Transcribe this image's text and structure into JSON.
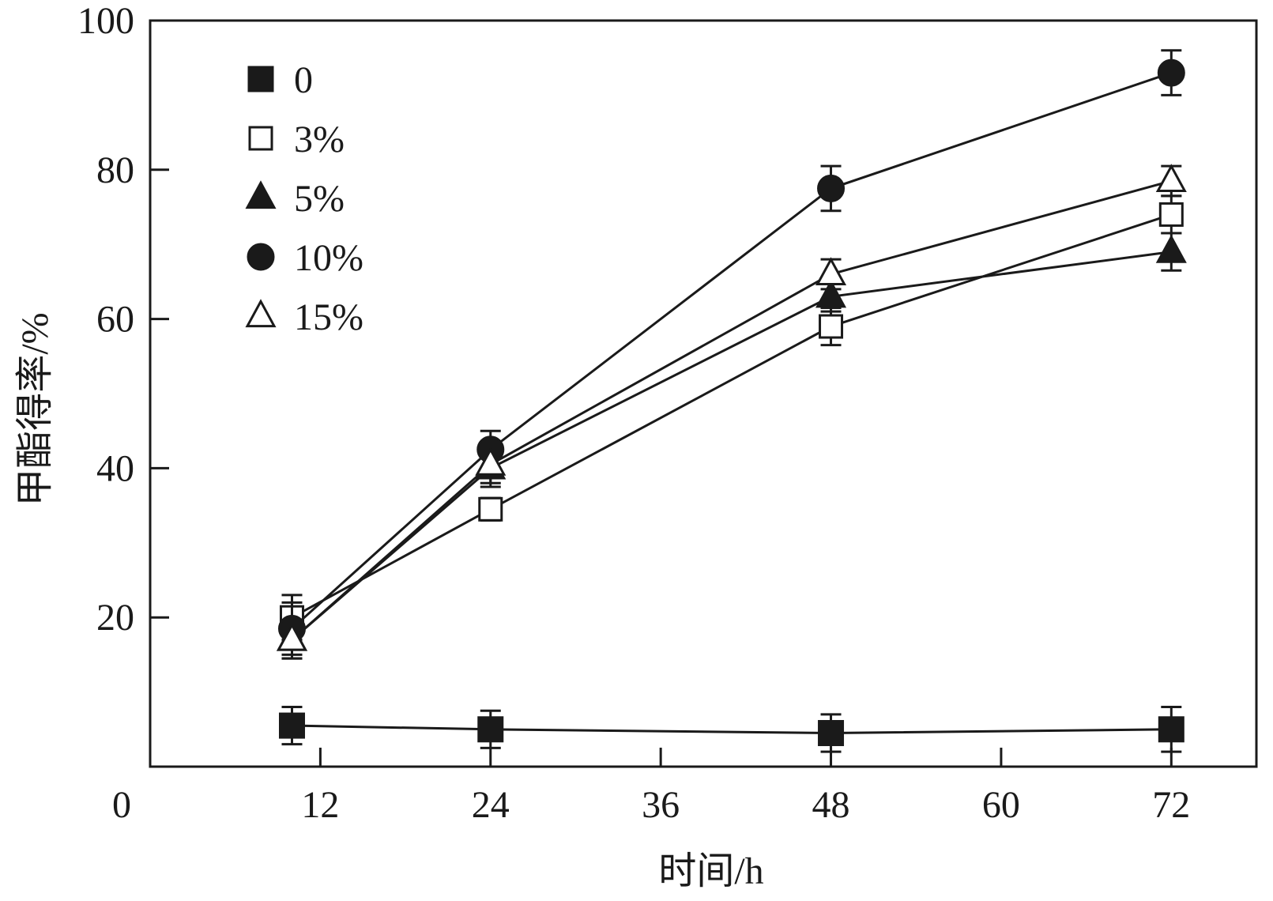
{
  "chart_data": {
    "type": "line",
    "xlabel": "时间/h",
    "ylabel": "甲酯得率/%",
    "xlim": [
      0,
      78
    ],
    "ylim": [
      0,
      100
    ],
    "xticks": [
      12,
      24,
      36,
      48,
      60,
      72
    ],
    "yticks": [
      20,
      40,
      60,
      80,
      100
    ],
    "origin_label": "0",
    "grid": false,
    "legend_position": "top-left",
    "x": [
      10,
      24,
      48,
      72
    ],
    "series": [
      {
        "name": "0",
        "marker": "square-filled",
        "values": [
          5.5,
          5.0,
          4.5,
          5.0
        ],
        "errors": [
          2.5,
          2.5,
          2.5,
          3.0
        ]
      },
      {
        "name": "3%",
        "marker": "square-open",
        "values": [
          20.0,
          34.5,
          59.0,
          74.0
        ],
        "errors": [
          3.0,
          1.5,
          2.5,
          2.5
        ]
      },
      {
        "name": "5%",
        "marker": "triangle-filled",
        "values": [
          17.0,
          40.0,
          63.0,
          69.0
        ],
        "errors": [
          2.5,
          2.5,
          2.0,
          2.5
        ]
      },
      {
        "name": "10%",
        "marker": "circle-filled",
        "values": [
          18.5,
          42.5,
          77.5,
          93.0
        ],
        "errors": [
          3.5,
          2.5,
          3.0,
          3.0
        ]
      },
      {
        "name": "15%",
        "marker": "triangle-open",
        "values": [
          17.0,
          40.5,
          66.0,
          78.5
        ],
        "errors": [
          2.5,
          2.5,
          2.0,
          2.0
        ]
      }
    ]
  }
}
